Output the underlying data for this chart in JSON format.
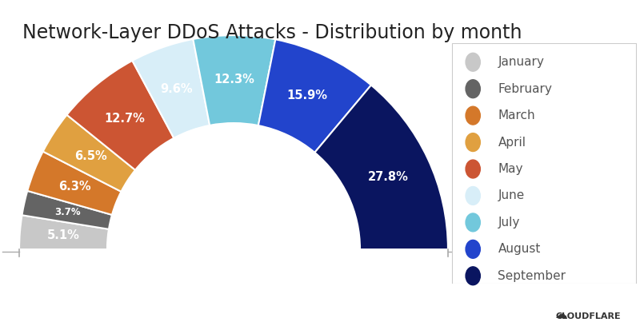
{
  "title": "Network-Layer DDoS Attacks - Distribution by month",
  "months": [
    "January",
    "February",
    "March",
    "April",
    "May",
    "June",
    "July",
    "August",
    "September"
  ],
  "values": [
    5.1,
    3.7,
    6.3,
    6.5,
    12.7,
    9.6,
    12.3,
    15.9,
    27.8
  ],
  "colors": [
    "#c8c8c8",
    "#646464",
    "#d4782a",
    "#e0a040",
    "#cc5533",
    "#d8eef8",
    "#72c8dc",
    "#2244cc",
    "#0a1560"
  ],
  "labels": [
    "5.1%",
    "3.7%",
    "6.3%",
    "6.5%",
    "12.7%",
    "9.6%",
    "12.3%",
    "15.9%",
    "27.8%"
  ],
  "background_color": "#ffffff",
  "title_fontsize": 17,
  "label_fontsize": 10.5,
  "legend_fontsize": 11
}
